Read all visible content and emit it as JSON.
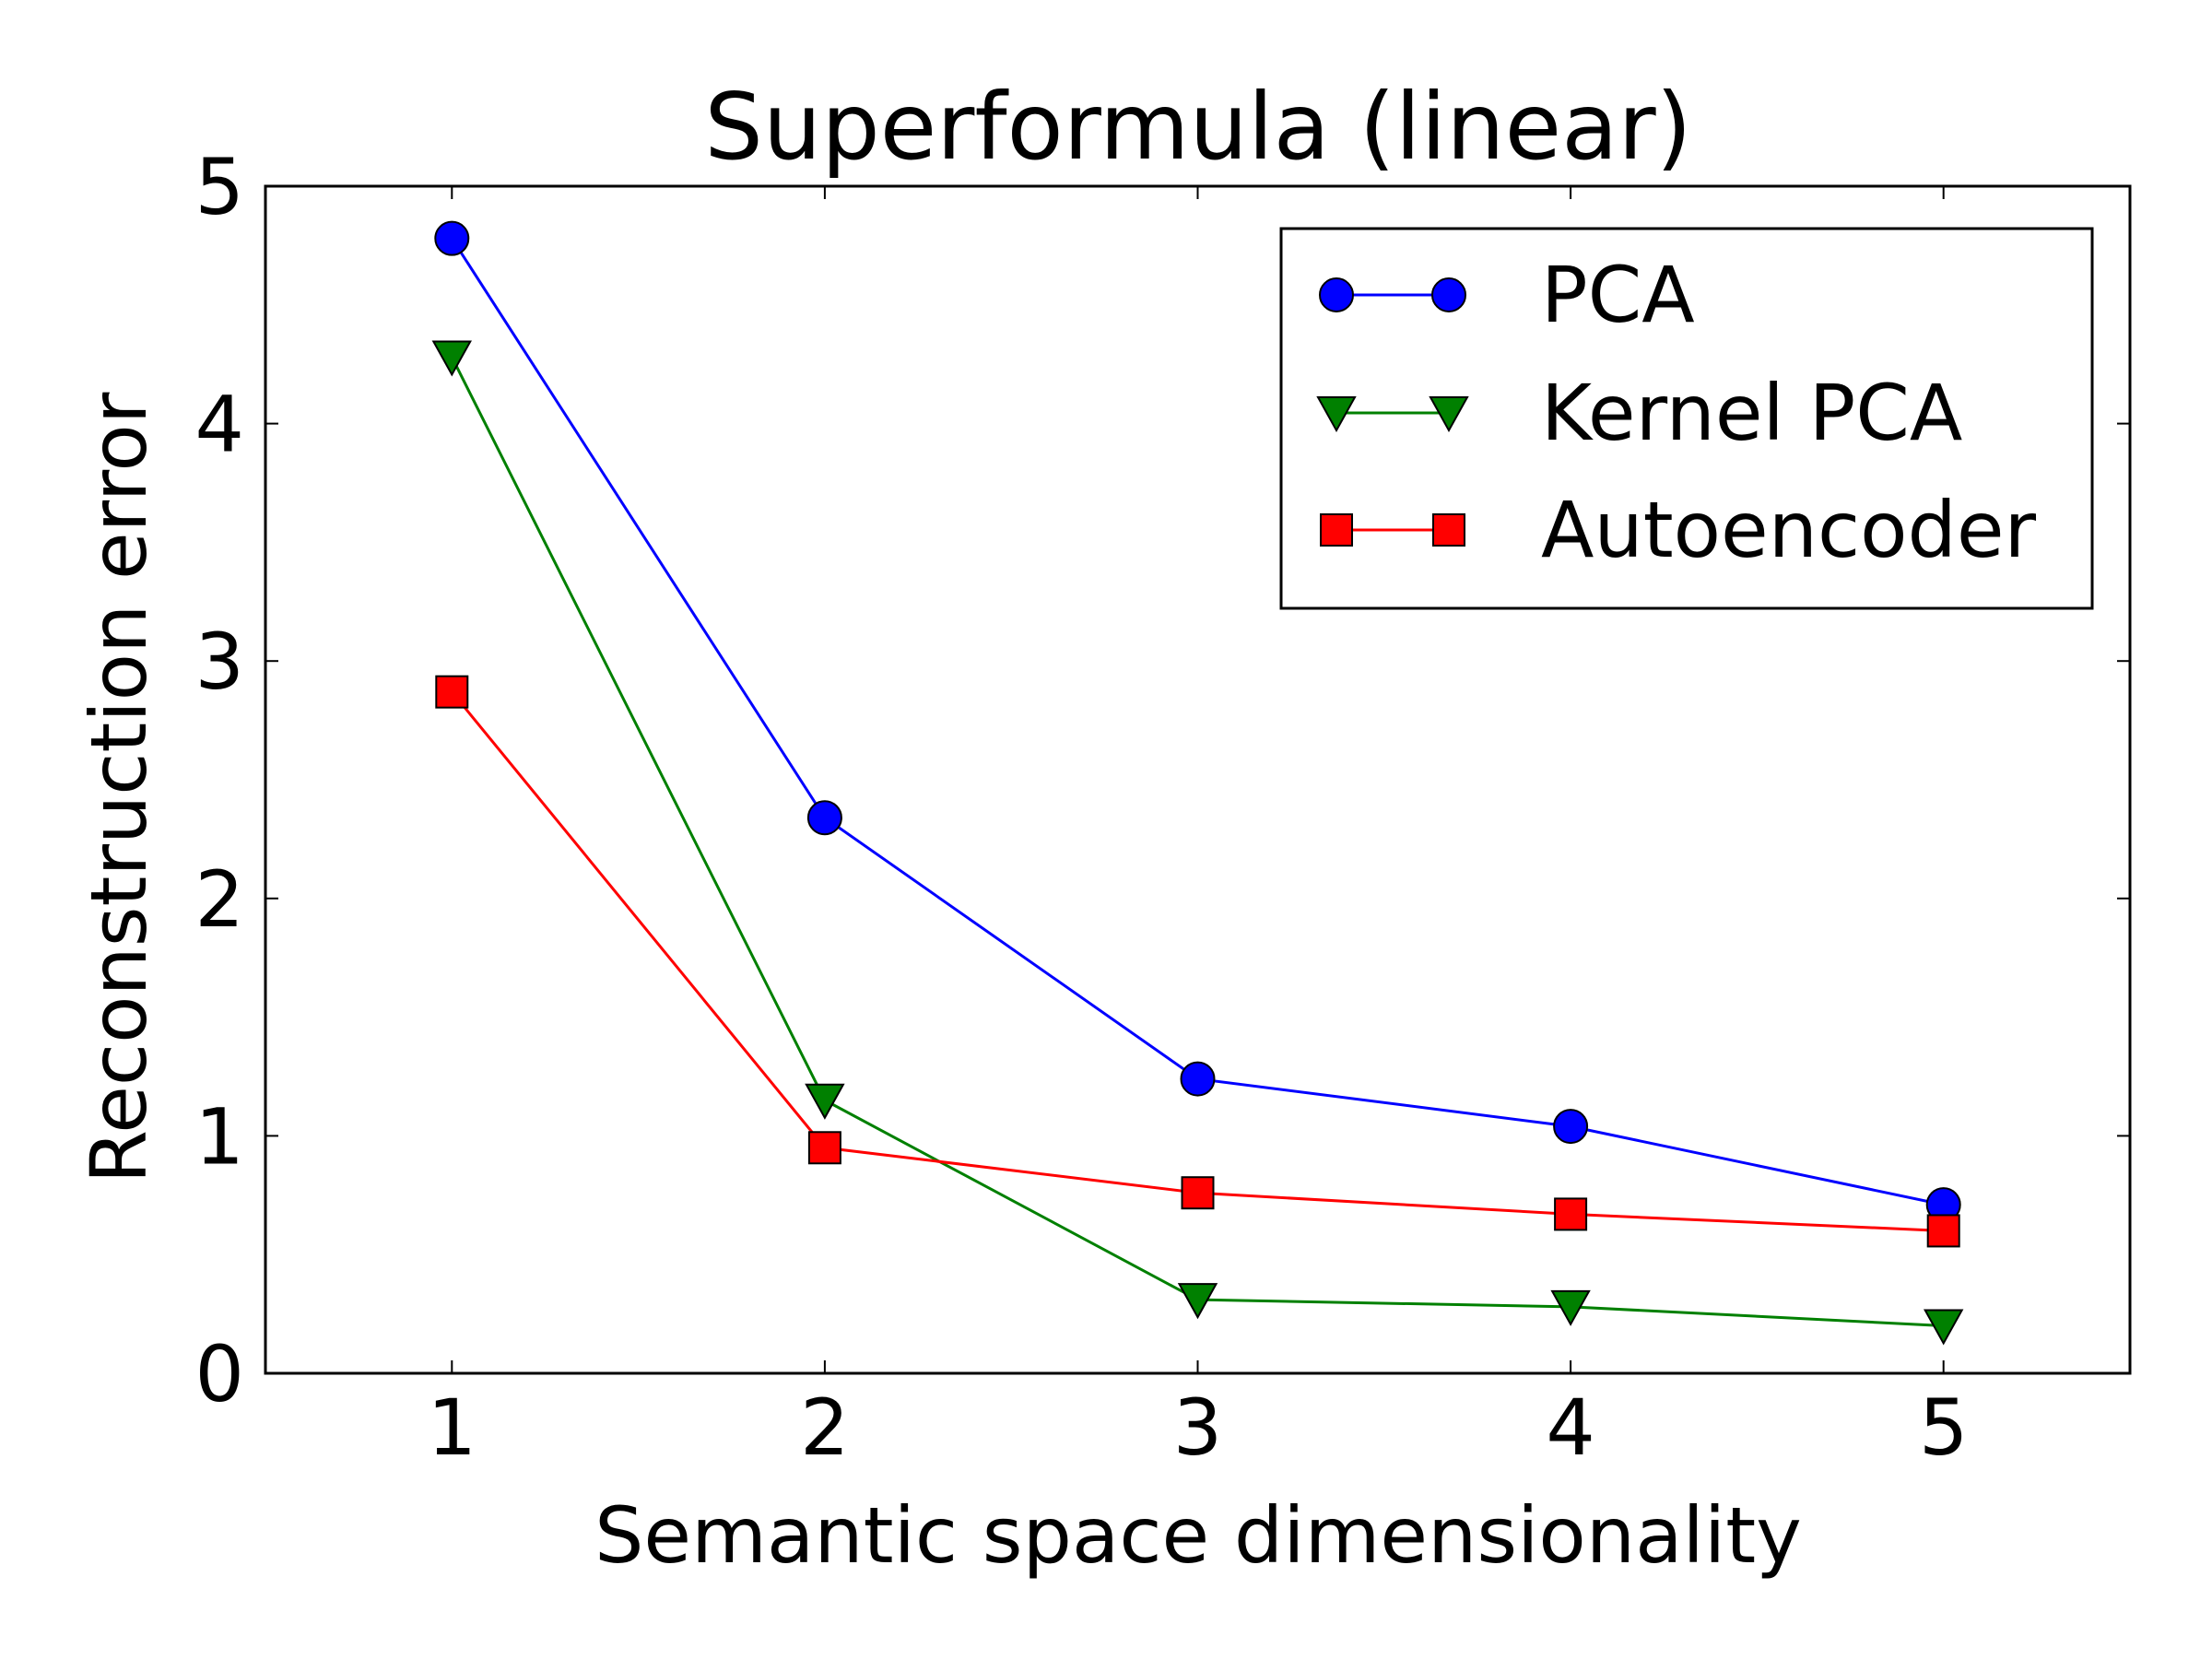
{
  "chart_data": {
    "type": "line",
    "title": "Superformula (linear)",
    "xlabel": "Semantic space dimensionality",
    "ylabel": "Reconstruction error",
    "xlim": [
      0.5,
      5.5
    ],
    "ylim": [
      0,
      5
    ],
    "x": [
      1,
      2,
      3,
      4,
      5
    ],
    "xticks": [
      "1",
      "2",
      "3",
      "4",
      "5"
    ],
    "yticks": [
      "0",
      "1",
      "2",
      "3",
      "4",
      "5"
    ],
    "grid": false,
    "legend_position": "top-right",
    "series": [
      {
        "name": "PCA",
        "marker": "circle",
        "color": "#0000ff",
        "values": [
          4.78,
          2.34,
          1.24,
          1.04,
          0.71
        ]
      },
      {
        "name": "Kernel PCA",
        "marker": "triangle-down",
        "color": "#008000",
        "values": [
          4.28,
          1.15,
          0.31,
          0.28,
          0.2
        ]
      },
      {
        "name": "Autoencoder",
        "marker": "square",
        "color": "#ff0000",
        "values": [
          2.87,
          0.95,
          0.76,
          0.67,
          0.6
        ]
      }
    ]
  }
}
